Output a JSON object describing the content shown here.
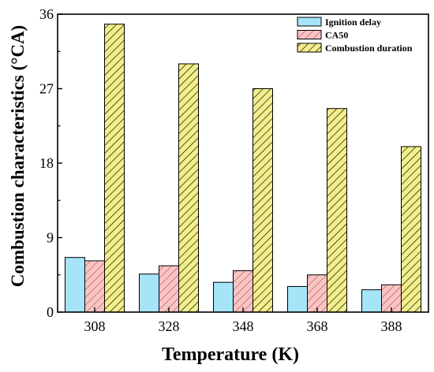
{
  "chart_data": {
    "type": "bar",
    "title": "",
    "xlabel": "Temperature (K)",
    "ylabel": "Combustion characteristics (°CA)",
    "categories": [
      "308",
      "328",
      "348",
      "368",
      "388"
    ],
    "ylim": [
      0,
      36
    ],
    "yticks": [
      "0",
      "9",
      "18",
      "27",
      "36"
    ],
    "grid": false,
    "legend_position": "top-right",
    "series": [
      {
        "name": "Ignition delay",
        "color": "#a6e4f8",
        "pattern": "solid",
        "values": [
          6.6,
          4.6,
          3.6,
          3.1,
          2.7
        ]
      },
      {
        "name": "CA50",
        "color": "#f8c5c5",
        "pattern": "hatch",
        "values": [
          6.2,
          5.6,
          5.0,
          4.5,
          3.3
        ]
      },
      {
        "name": "Combustion duration",
        "color": "#f2ee8a",
        "pattern": "hatch",
        "values": [
          34.8,
          30.0,
          27.0,
          24.6,
          20.0
        ]
      }
    ]
  }
}
